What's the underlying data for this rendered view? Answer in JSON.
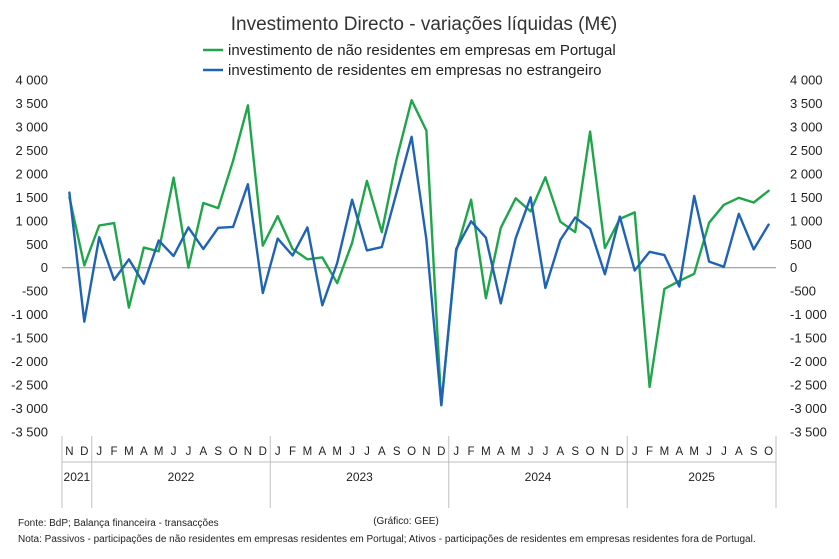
{
  "chart_data": {
    "type": "line",
    "title": "Investimento Directo - variações líquidas (M€)",
    "ylim": [
      -3500,
      4000
    ],
    "ytick_values": [
      4000,
      3500,
      3000,
      2500,
      2000,
      1500,
      1000,
      500,
      0,
      -500,
      -1000,
      -1500,
      -2000,
      -2500,
      -3000,
      -3500
    ],
    "ytick_labels": [
      "4 000",
      "3 500",
      "3 000",
      "2 500",
      "2 000",
      "1 500",
      "1 000",
      "500",
      "0",
      "-500",
      "-1 000",
      "-1 500",
      "-2 000",
      "-2 500",
      "-3 000",
      "-3 500"
    ],
    "month_labels": [
      "N",
      "D",
      "J",
      "F",
      "M",
      "A",
      "M",
      "J",
      "J",
      "A",
      "S",
      "O",
      "N",
      "D",
      "J",
      "F",
      "M",
      "A",
      "M",
      "J",
      "J",
      "A",
      "S",
      "O",
      "N",
      "D",
      "J",
      "F",
      "M",
      "A",
      "M",
      "J",
      "J",
      "A",
      "S",
      "O",
      "N",
      "D",
      "J",
      "F",
      "M",
      "A",
      "M",
      "J",
      "J",
      "A",
      "S",
      "O"
    ],
    "years": [
      {
        "label": "2021",
        "start": 0,
        "count": 2
      },
      {
        "label": "2022",
        "start": 2,
        "count": 12
      },
      {
        "label": "2023",
        "start": 14,
        "count": 12
      },
      {
        "label": "2024",
        "start": 26,
        "count": 12
      },
      {
        "label": "2025",
        "start": 38,
        "count": 10
      }
    ],
    "series": [
      {
        "name": "investimento de não residentes em empresas em Portugal",
        "color": "#1fa64a",
        "values": [
          1500,
          50,
          900,
          950,
          -850,
          430,
          350,
          1920,
          0,
          1380,
          1270,
          2280,
          3460,
          470,
          1100,
          400,
          180,
          220,
          -330,
          530,
          1850,
          760,
          2320,
          3570,
          2920,
          -2930,
          350,
          1450,
          -650,
          850,
          1480,
          1200,
          1930,
          980,
          760,
          2900,
          420,
          1040,
          1180,
          -2540,
          -450,
          -280,
          -130,
          960,
          1340,
          1490,
          1390,
          1640
        ]
      },
      {
        "name": "investimento de residentes em empresas no estrangeiro",
        "color": "#1f63b5",
        "values": [
          1600,
          -1150,
          650,
          -260,
          180,
          -340,
          580,
          250,
          860,
          400,
          850,
          870,
          1780,
          -540,
          620,
          260,
          860,
          -800,
          100,
          1450,
          370,
          440,
          1610,
          2790,
          600,
          -2930,
          400,
          990,
          640,
          -760,
          630,
          1500,
          -430,
          590,
          1070,
          830,
          -140,
          1090,
          -60,
          340,
          270,
          -400,
          1530,
          130,
          20,
          1150,
          390,
          920
        ]
      }
    ],
    "credit": "(Gráfico:  GEE)"
  },
  "footer": {
    "source": "Fonte: BdP; Balança financeira - transacções",
    "note": "Nota: Passivos - participações de não residentes em empresas residentes em Portugal; Ativos - participações de residentes em empresas residentes fora de Portugal."
  }
}
